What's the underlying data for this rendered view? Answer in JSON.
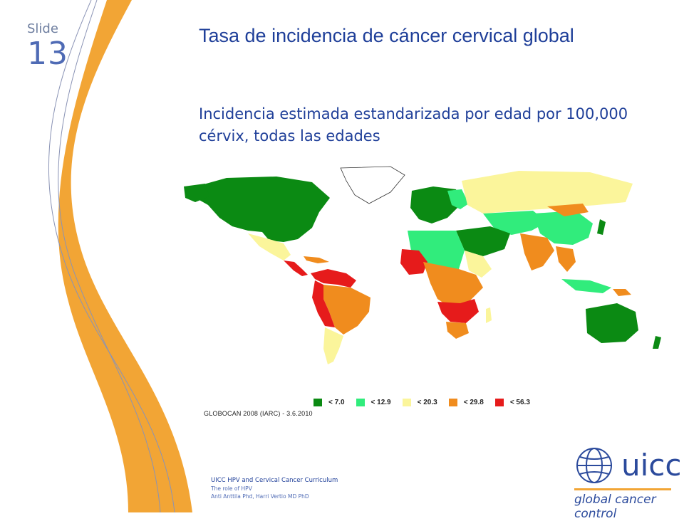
{
  "slide": {
    "label": "Slide",
    "number": "13"
  },
  "title": "Tasa de incidencia de cáncer cervical global",
  "subtitle": "Incidencia estimada estandarizada por edad por 100,000 cérvix, todas las edades",
  "map": {
    "legend": [
      {
        "label": "< 7.0",
        "color": "#0b8a13"
      },
      {
        "label": "< 12.9",
        "color": "#31ec7c"
      },
      {
        "label": "< 20.3",
        "color": "#fbf59b"
      },
      {
        "label": "< 29.8",
        "color": "#f08c1e"
      },
      {
        "label": "< 56.3",
        "color": "#e61b1b"
      }
    ],
    "source": "GLOBOCAN 2008 (IARC) - 3.6.2010"
  },
  "footer": {
    "line1": "UICC  HPV and Cervical Cancer Curriculum",
    "line2": "The role of HPV",
    "line3": "Anti Anttila Phd, Harri Vertio MD PhD"
  },
  "logo": {
    "word": "uicc",
    "tagline": "global cancer control",
    "rule_color": "#f2a535",
    "globe_color": "#2b4a9c"
  },
  "colors": {
    "orange_band": "#f2a535",
    "title": "#1f3f99",
    "slide_number": "#4f6bb5"
  }
}
